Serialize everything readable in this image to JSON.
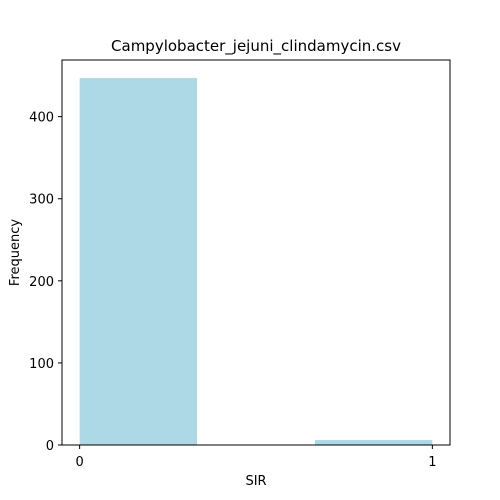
{
  "chart_data": {
    "type": "bar",
    "title": "Campylobacter_jejuni_clindamycin.csv",
    "xlabel": "SIR",
    "ylabel": "Frequency",
    "bins": [
      {
        "x_start": 0,
        "x_end": 0.333,
        "count": 447
      },
      {
        "x_start": 0.667,
        "x_end": 1,
        "count": 6
      }
    ],
    "xlim": [
      -0.05,
      1.05
    ],
    "ylim": [
      0,
      469
    ],
    "xticks": [
      0,
      1
    ],
    "yticks": [
      0,
      100,
      200,
      300,
      400
    ],
    "bar_color": "#add8e6",
    "grid": false,
    "legend": false
  }
}
